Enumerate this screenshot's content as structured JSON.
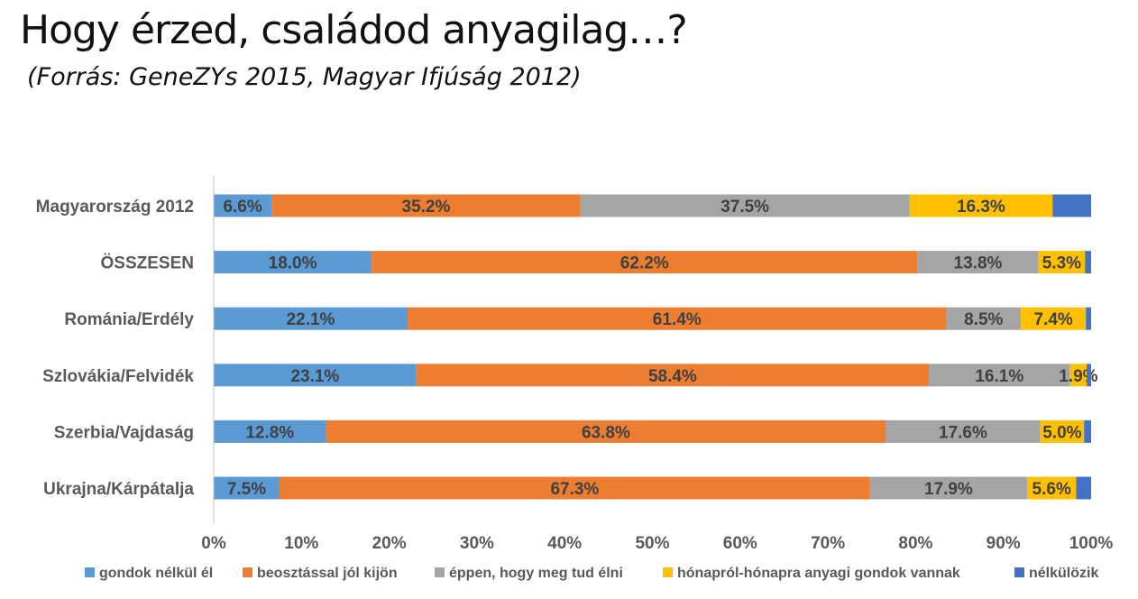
{
  "title": "Hogy érzed, családod anyagilag…?",
  "subtitle": "(Forrás: GeneZYs 2015, Magyar Ifjúság 2012)",
  "chart_data": {
    "type": "bar",
    "orientation": "horizontal",
    "stacked": "percent",
    "categories": [
      "Magyarország 2012",
      "ÖSSZESEN",
      "Románia/Erdély",
      "Szlovákia/Felvidék",
      "Szerbia/Vajdaság",
      "Ukrajna/Kárpátalja"
    ],
    "series": [
      {
        "name": "gondok nélkül él",
        "color": "#5B9BD5",
        "values": [
          6.6,
          18.0,
          22.1,
          23.1,
          12.8,
          7.5
        ],
        "labels": [
          "6.6%",
          "18.0%",
          "22.1%",
          "23.1%",
          "12.8%",
          "7.5%"
        ]
      },
      {
        "name": "beosztással jól kijön",
        "color": "#ED7D31",
        "values": [
          35.2,
          62.2,
          61.4,
          58.4,
          63.8,
          67.3
        ],
        "labels": [
          "35.2%",
          "62.2%",
          "61.4%",
          "58.4%",
          "63.8%",
          "67.3%"
        ]
      },
      {
        "name": "éppen, hogy meg tud élni",
        "color": "#A5A5A5",
        "values": [
          37.5,
          13.8,
          8.5,
          16.1,
          17.6,
          17.9
        ],
        "labels": [
          "37.5%",
          "13.8%",
          "8.5%",
          "16.1%",
          "17.6%",
          "17.9%"
        ]
      },
      {
        "name": "hónapról-hónapra anyagi gondok vannak",
        "color": "#FFC000",
        "values": [
          16.3,
          5.3,
          7.4,
          1.9,
          5.0,
          5.6
        ],
        "labels": [
          "16.3%",
          "5.3%",
          "7.4%",
          "1.9%",
          "5.0%",
          "5.6%"
        ]
      },
      {
        "name": "nélkülözik",
        "color": "#4472C4",
        "values": [
          4.4,
          0.7,
          0.6,
          0.5,
          0.8,
          1.7
        ],
        "labels": [
          "",
          "",
          "",
          "",
          "",
          ""
        ]
      }
    ],
    "x_ticks": [
      "0%",
      "10%",
      "20%",
      "30%",
      "40%",
      "50%",
      "60%",
      "70%",
      "80%",
      "90%",
      "100%"
    ],
    "xlim": [
      0,
      100
    ],
    "grid": false,
    "legend_position": "bottom"
  }
}
